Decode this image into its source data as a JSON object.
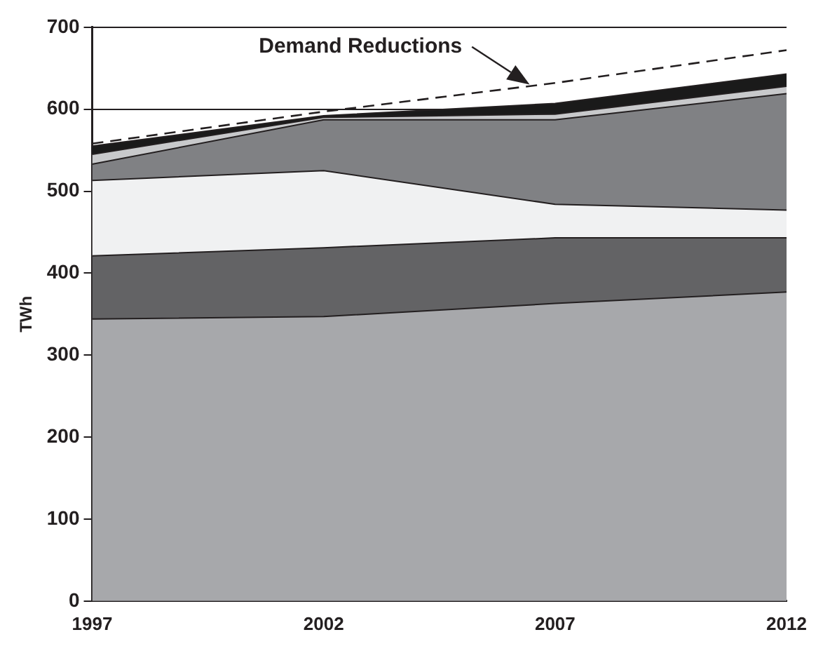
{
  "chart_data": {
    "type": "area",
    "stacked": true,
    "ylabel": "TWh",
    "x": [
      1997,
      2002,
      2007,
      2012
    ],
    "xlim": [
      1997,
      2012
    ],
    "xticks": [
      1997,
      2002,
      2007,
      2012
    ],
    "ylim": [
      0,
      700
    ],
    "yticks": [
      0,
      100,
      200,
      300,
      400,
      500,
      600,
      700
    ],
    "grid": "y",
    "legend": false,
    "series": [
      {
        "color": "#a7a8ab",
        "values": [
          344,
          347,
          363,
          377
        ]
      },
      {
        "color": "#636365",
        "values": [
          77,
          84,
          80,
          66
        ]
      },
      {
        "color": "#f0f1f2",
        "values": [
          92,
          94,
          41,
          34
        ]
      },
      {
        "color": "#808184",
        "values": [
          20,
          62,
          103,
          142
        ]
      },
      {
        "color": "#c8c9cb",
        "values": [
          12,
          3,
          7,
          9
        ]
      },
      {
        "color": "#1a1a1a",
        "values": [
          10,
          2,
          13,
          15
        ]
      },
      {
        "type": "line",
        "color": "#231f20",
        "line_style": "dashed",
        "values": [
          558,
          597,
          632,
          672
        ]
      }
    ],
    "annotations": [
      "Demand Reductions"
    ]
  }
}
